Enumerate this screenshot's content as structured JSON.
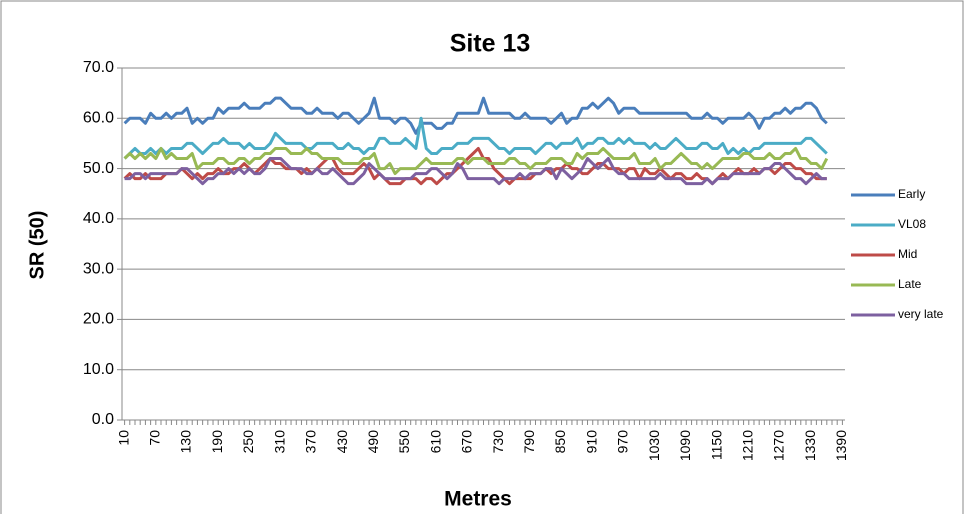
{
  "chart_data": {
    "type": "line",
    "title": "Site 13",
    "x_label": "Metres",
    "y_label": "SR (50)",
    "categories": [
      "10",
      null,
      null,
      null,
      null,
      null,
      "70",
      null,
      null,
      null,
      null,
      null,
      "130",
      null,
      null,
      null,
      null,
      null,
      "190",
      null,
      null,
      null,
      null,
      null,
      "250",
      null,
      null,
      null,
      null,
      null,
      "310",
      null,
      null,
      null,
      null,
      null,
      "370",
      null,
      null,
      null,
      null,
      null,
      "430",
      null,
      null,
      null,
      null,
      null,
      "490",
      null,
      null,
      null,
      null,
      null,
      "550",
      null,
      null,
      null,
      null,
      null,
      "610",
      null,
      null,
      null,
      null,
      null,
      "670",
      null,
      null,
      null,
      null,
      null,
      "730",
      null,
      null,
      null,
      null,
      null,
      "790",
      null,
      null,
      null,
      null,
      null,
      "850",
      null,
      null,
      null,
      null,
      null,
      "910",
      null,
      null,
      null,
      null,
      null,
      "970",
      null,
      null,
      null,
      null,
      null,
      "1030",
      null,
      null,
      null,
      null,
      null,
      "1090",
      null,
      null,
      null,
      null,
      null,
      "1150",
      null,
      null,
      null,
      null,
      null,
      "1210",
      null,
      null,
      null,
      null,
      null,
      "1270",
      null,
      null,
      null,
      null,
      null,
      "1330",
      null,
      null,
      null,
      null,
      null,
      "1390"
    ],
    "series": [
      {
        "name": "Early",
        "color": "#4a7ebb",
        "values": [
          59,
          60,
          60,
          60,
          59,
          61,
          60,
          60,
          61,
          60,
          61,
          61,
          62,
          59,
          60,
          59,
          60,
          60,
          62,
          61,
          62,
          62,
          62,
          63,
          62,
          62,
          62,
          63,
          63,
          64,
          64,
          63,
          62,
          62,
          62,
          61,
          61,
          62,
          61,
          61,
          61,
          60,
          61,
          61,
          60,
          59,
          60,
          61,
          64,
          60,
          60,
          60,
          59,
          60,
          60,
          59,
          57,
          59,
          59,
          59,
          58,
          58,
          59,
          59,
          61,
          61,
          61,
          61,
          61,
          64,
          61,
          61,
          61,
          61,
          61,
          60,
          60,
          61,
          60,
          60,
          60,
          60,
          59,
          60,
          61,
          59,
          60,
          60,
          62,
          62,
          63,
          62,
          63,
          64,
          63,
          61,
          62,
          62,
          62,
          61,
          61,
          61,
          61,
          61,
          61,
          61,
          61,
          61,
          61,
          60,
          60,
          60,
          61,
          60,
          60,
          59,
          60,
          60,
          60,
          60,
          61,
          60,
          58,
          60,
          60,
          61,
          61,
          62,
          61,
          62,
          62,
          63,
          63,
          62,
          60,
          59,
          null,
          null,
          null
        ]
      },
      {
        "name": "VL08",
        "color": "#4bacc6",
        "values": [
          52,
          53,
          54,
          53,
          53,
          54,
          53,
          54,
          53,
          54,
          54,
          54,
          55,
          55,
          54,
          53,
          54,
          55,
          55,
          56,
          55,
          55,
          55,
          54,
          55,
          54,
          54,
          54,
          55,
          57,
          56,
          55,
          55,
          55,
          55,
          54,
          54,
          55,
          55,
          55,
          55,
          54,
          54,
          55,
          54,
          54,
          53,
          54,
          54,
          56,
          56,
          55,
          55,
          55,
          56,
          55,
          54,
          60,
          54,
          53,
          53,
          54,
          54,
          54,
          55,
          55,
          55,
          56,
          56,
          56,
          56,
          55,
          54,
          54,
          53,
          54,
          54,
          54,
          54,
          53,
          54,
          55,
          55,
          54,
          55,
          55,
          55,
          56,
          54,
          55,
          55,
          56,
          56,
          55,
          55,
          56,
          55,
          56,
          55,
          55,
          55,
          54,
          55,
          54,
          54,
          55,
          56,
          55,
          54,
          54,
          54,
          55,
          55,
          54,
          54,
          55,
          53,
          54,
          53,
          54,
          53,
          54,
          54,
          55,
          55,
          55,
          55,
          55,
          55,
          55,
          55,
          56,
          56,
          55,
          54,
          53,
          null,
          null,
          null
        ]
      },
      {
        "name": "Mid",
        "color": "#be4b48",
        "values": [
          48,
          49,
          48,
          48,
          49,
          48,
          48,
          48,
          49,
          49,
          49,
          50,
          49,
          48,
          49,
          48,
          49,
          49,
          50,
          49,
          49,
          50,
          50,
          51,
          50,
          49,
          50,
          51,
          52,
          51,
          51,
          50,
          50,
          50,
          49,
          50,
          49,
          50,
          51,
          52,
          52,
          50,
          49,
          49,
          49,
          50,
          51,
          50,
          48,
          49,
          48,
          47,
          47,
          47,
          48,
          48,
          48,
          47,
          48,
          48,
          47,
          48,
          49,
          49,
          50,
          51,
          52,
          53,
          54,
          52,
          52,
          50,
          49,
          48,
          47,
          48,
          48,
          48,
          48,
          49,
          49,
          50,
          49,
          50,
          50,
          51,
          50,
          50,
          49,
          49,
          50,
          51,
          51,
          50,
          50,
          50,
          49,
          50,
          50,
          48,
          50,
          49,
          49,
          50,
          49,
          48,
          49,
          49,
          48,
          48,
          49,
          48,
          48,
          47,
          48,
          49,
          48,
          49,
          50,
          49,
          49,
          50,
          49,
          50,
          50,
          49,
          50,
          51,
          51,
          50,
          50,
          49,
          49,
          48,
          48,
          48,
          null,
          null,
          null
        ]
      },
      {
        "name": "Late",
        "color": "#98b954",
        "values": [
          52,
          53,
          52,
          53,
          52,
          53,
          52,
          54,
          52,
          53,
          52,
          52,
          52,
          53,
          50,
          51,
          51,
          51,
          52,
          52,
          51,
          51,
          52,
          52,
          51,
          52,
          52,
          53,
          53,
          54,
          54,
          54,
          53,
          53,
          53,
          54,
          53,
          53,
          52,
          52,
          52,
          52,
          51,
          51,
          51,
          51,
          52,
          52,
          53,
          50,
          50,
          51,
          49,
          50,
          50,
          50,
          50,
          51,
          52,
          51,
          51,
          51,
          51,
          51,
          52,
          52,
          51,
          52,
          52,
          52,
          51,
          51,
          51,
          51,
          52,
          52,
          51,
          51,
          50,
          51,
          51,
          51,
          52,
          52,
          52,
          51,
          51,
          53,
          52,
          53,
          53,
          53,
          54,
          53,
          52,
          52,
          52,
          52,
          53,
          51,
          51,
          51,
          52,
          50,
          51,
          51,
          52,
          53,
          52,
          51,
          51,
          50,
          51,
          50,
          51,
          52,
          52,
          52,
          52,
          53,
          53,
          52,
          52,
          52,
          53,
          52,
          52,
          53,
          53,
          54,
          52,
          52,
          51,
          51,
          50,
          52,
          null,
          null,
          null
        ]
      },
      {
        "name": "very late",
        "color": "#7d60a0",
        "values": [
          48,
          48,
          49,
          49,
          48,
          49,
          49,
          49,
          49,
          49,
          49,
          50,
          50,
          49,
          48,
          47,
          48,
          48,
          49,
          49,
          50,
          49,
          50,
          49,
          50,
          49,
          49,
          50,
          52,
          52,
          52,
          51,
          50,
          50,
          50,
          49,
          49,
          50,
          49,
          49,
          50,
          49,
          48,
          47,
          47,
          48,
          49,
          51,
          50,
          49,
          48,
          48,
          48,
          48,
          48,
          48,
          49,
          49,
          49,
          50,
          50,
          49,
          48,
          49,
          51,
          50,
          48,
          48,
          48,
          48,
          48,
          48,
          47,
          48,
          48,
          48,
          49,
          48,
          49,
          49,
          49,
          50,
          50,
          48,
          50,
          49,
          48,
          49,
          50,
          52,
          51,
          50,
          51,
          52,
          50,
          49,
          49,
          48,
          48,
          48,
          48,
          48,
          48,
          49,
          48,
          48,
          48,
          48,
          47,
          47,
          47,
          47,
          48,
          47,
          48,
          48,
          48,
          49,
          49,
          49,
          49,
          49,
          49,
          50,
          50,
          51,
          51,
          50,
          49,
          48,
          48,
          47,
          48,
          49,
          48,
          48,
          null,
          null,
          null
        ]
      }
    ],
    "ylim": [
      0,
      70
    ],
    "yticks": [
      {
        "value": 0,
        "label": "0.0"
      },
      {
        "value": 10,
        "label": "10.0"
      },
      {
        "value": 20,
        "label": "20.0"
      },
      {
        "value": 30,
        "label": "30.0"
      },
      {
        "value": 40,
        "label": "40.0"
      },
      {
        "value": 50,
        "label": "50.0"
      },
      {
        "value": 60,
        "label": "60.0"
      },
      {
        "value": 70,
        "label": "70.0"
      }
    ],
    "grid": true,
    "legend": "right"
  }
}
